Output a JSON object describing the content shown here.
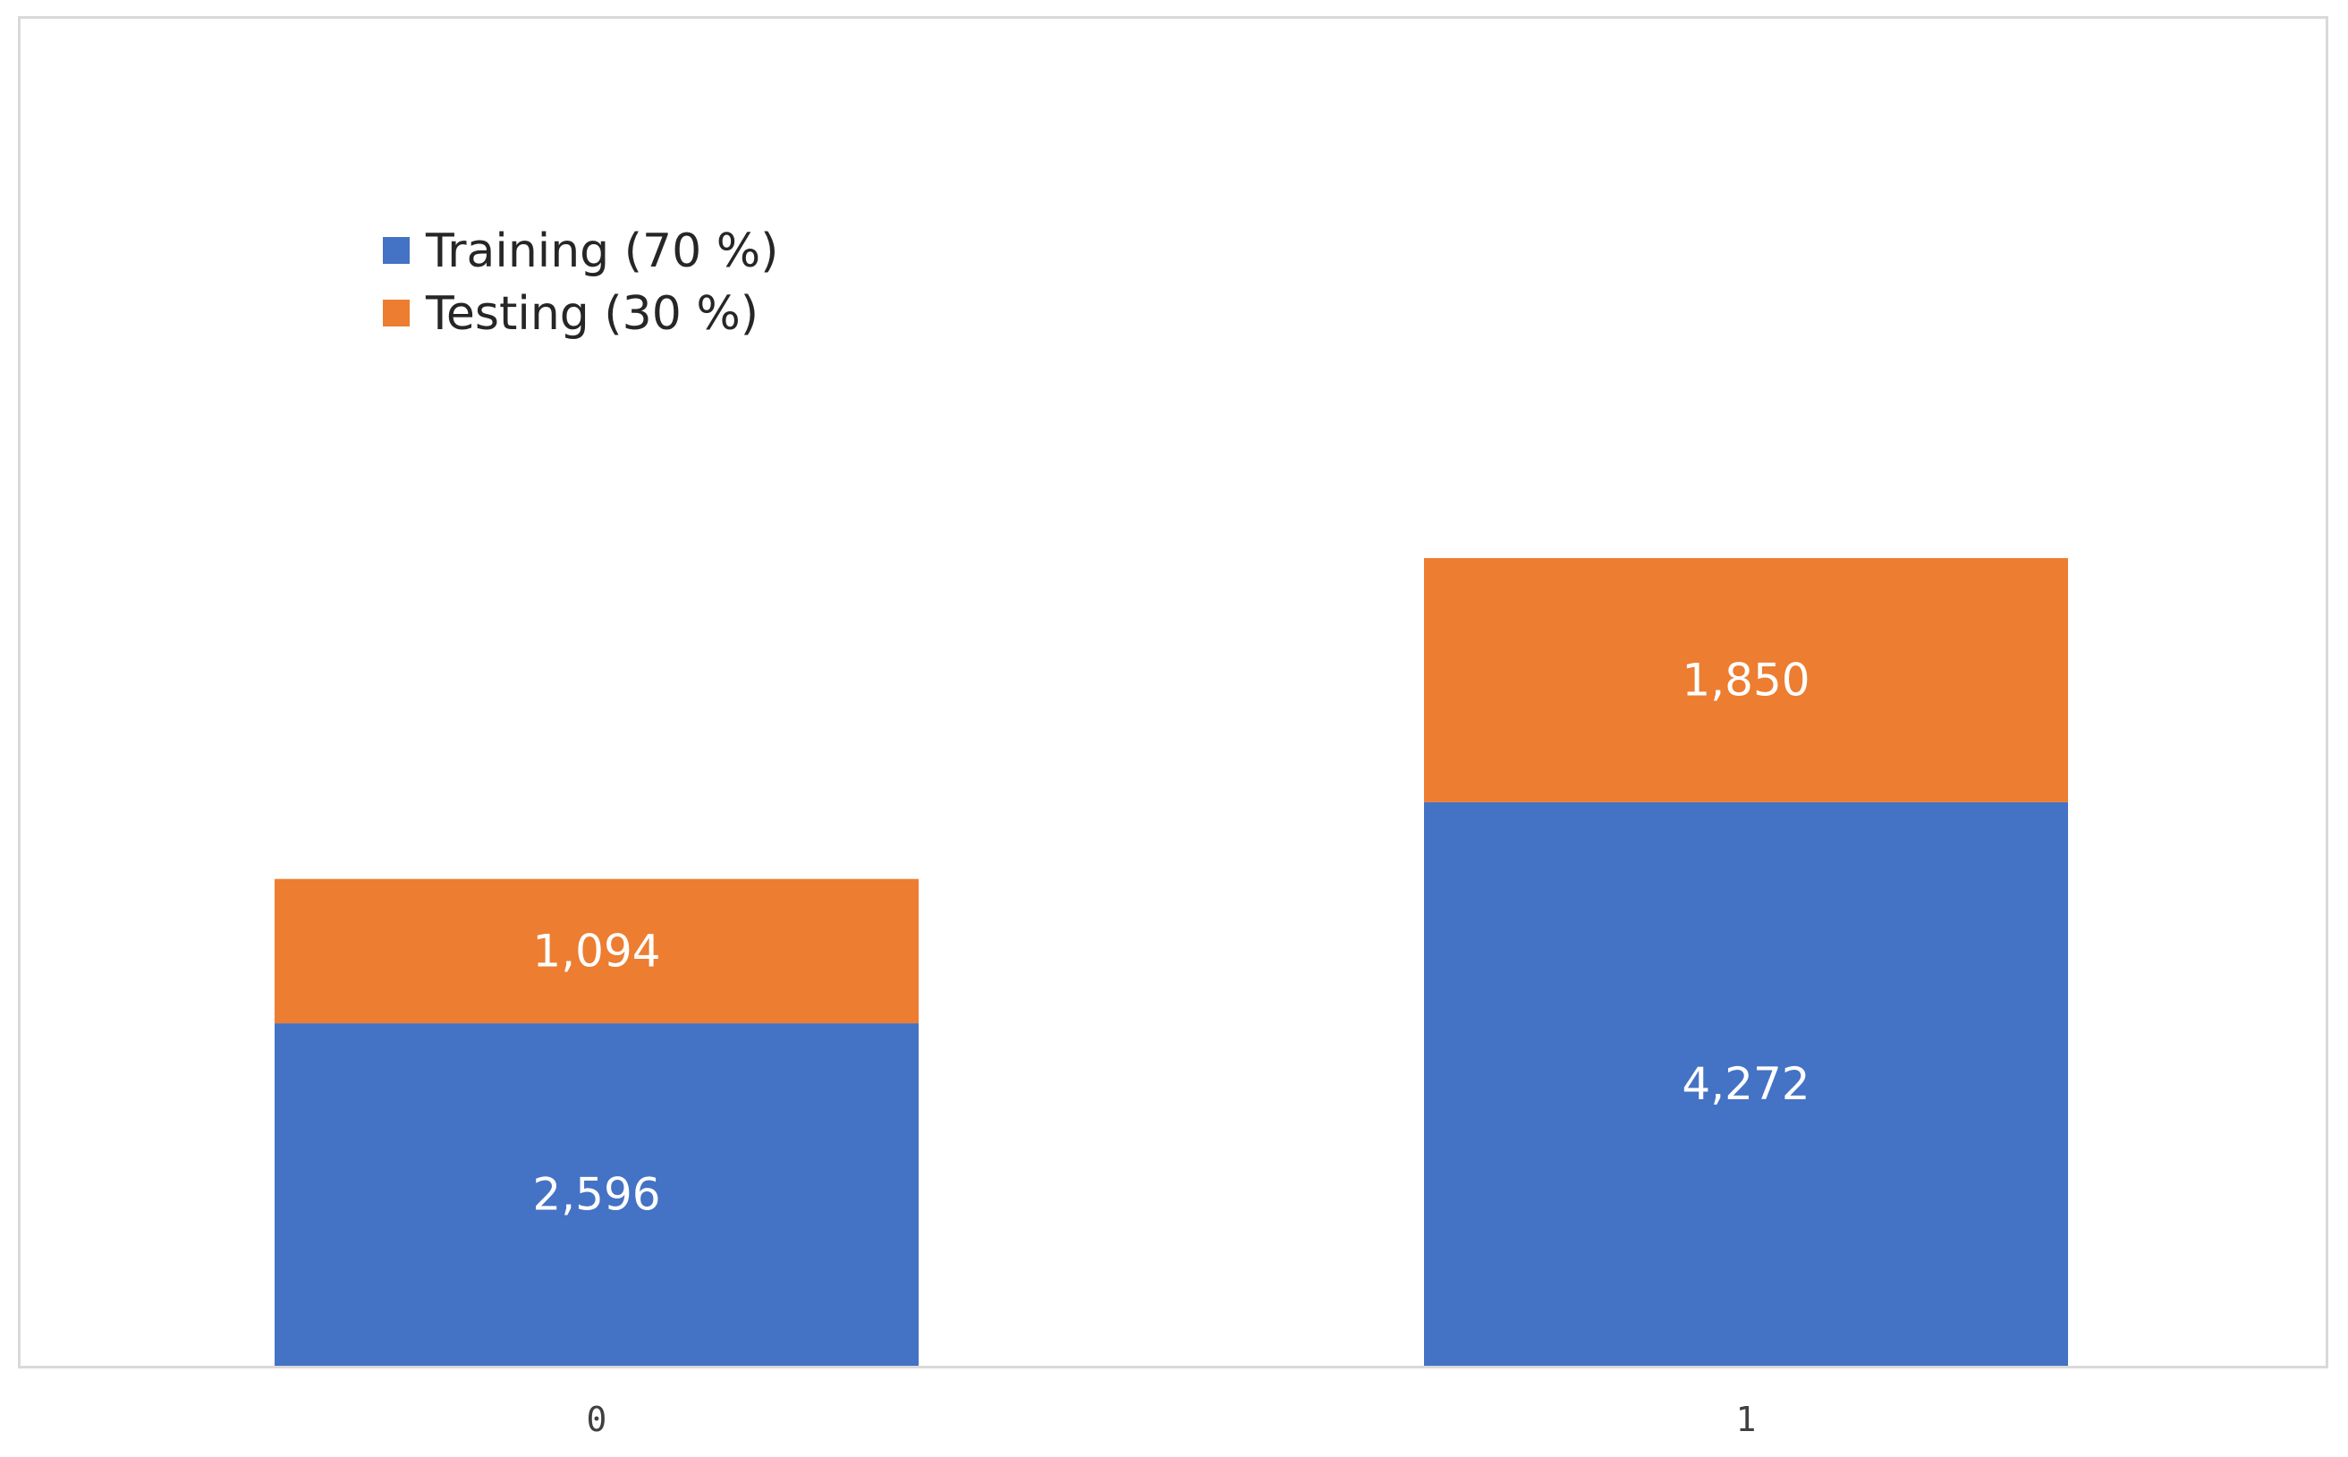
{
  "chart_data": {
    "type": "bar",
    "stacked": true,
    "categories": [
      "0",
      "1"
    ],
    "series": [
      {
        "name": "Training (70 %)",
        "values": [
          2596,
          4272
        ],
        "labels": [
          "2,596",
          "4,272"
        ],
        "color": "#4472c4"
      },
      {
        "name": "Testing (30 %)",
        "values": [
          1094,
          1850
        ],
        "labels": [
          "1,094",
          "1,850"
        ],
        "color": "#ed7d31"
      }
    ],
    "title": "",
    "xlabel": "",
    "ylabel": "",
    "ylim": [
      0,
      7000
    ],
    "grid": false,
    "legend_position": "top-left"
  }
}
